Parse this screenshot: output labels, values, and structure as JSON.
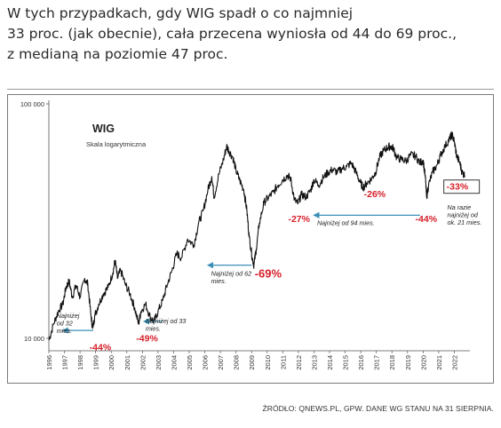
{
  "headline": {
    "line1": "W tych przypadkach, gdy WIG spadł o co najmniej",
    "line2": "33 proc. (jak obecnie), cała przecena wyniosła od 44 do 69 proc.,",
    "line3": "z medianą na poziomie 47 proc."
  },
  "source": "ŹRÓDŁO: QNEWS.PL, GPW. DANE WG STANU NA 31 SIERPNIA.",
  "colors": {
    "line": "#111111",
    "accent_red": "#d6202a",
    "arrow_blue": "#3a8fb5",
    "axis": "#555555"
  },
  "chart_data": {
    "type": "line",
    "title": "WIG",
    "subtitle": "Skala logarytmiczna",
    "xlabel": "",
    "ylabel": "",
    "y_scale": "log",
    "ylim": [
      9000,
      100000
    ],
    "y_ticks": [
      {
        "value": 100000,
        "label": "100 000"
      },
      {
        "value": 10000,
        "label": "10 000"
      }
    ],
    "xlim": [
      1996.0,
      2023.0
    ],
    "x_ticks": [
      "1996",
      "1997",
      "1998",
      "1999",
      "2000",
      "2001",
      "2002",
      "2003",
      "2004",
      "2005",
      "2006",
      "2007",
      "2008",
      "2009",
      "2010",
      "2011",
      "2012",
      "2013",
      "2014",
      "2015",
      "2016",
      "2017",
      "2018",
      "2019",
      "2020",
      "2021",
      "2022"
    ],
    "series": [
      {
        "values": [
          [
            1996.0,
            9800
          ],
          [
            1996.3,
            11500
          ],
          [
            1996.6,
            13000
          ],
          [
            1996.9,
            14000
          ],
          [
            1997.1,
            16500
          ],
          [
            1997.3,
            17500
          ],
          [
            1997.5,
            15000
          ],
          [
            1997.75,
            16800
          ],
          [
            1998.0,
            15000
          ],
          [
            1998.3,
            18000
          ],
          [
            1998.5,
            17000
          ],
          [
            1998.7,
            12500
          ],
          [
            1998.8,
            11000
          ],
          [
            1998.95,
            12500
          ],
          [
            1999.2,
            14000
          ],
          [
            1999.5,
            15500
          ],
          [
            1999.8,
            16500
          ],
          [
            2000.1,
            19000
          ],
          [
            2000.25,
            21500
          ],
          [
            2000.4,
            18000
          ],
          [
            2000.6,
            19500
          ],
          [
            2000.9,
            17000
          ],
          [
            2001.2,
            15500
          ],
          [
            2001.5,
            13500
          ],
          [
            2001.75,
            11500
          ],
          [
            2001.9,
            13000
          ],
          [
            2002.2,
            14000
          ],
          [
            2002.5,
            12300
          ],
          [
            2002.75,
            11800
          ],
          [
            2003.0,
            13000
          ],
          [
            2003.3,
            14500
          ],
          [
            2003.6,
            17000
          ],
          [
            2003.9,
            19500
          ],
          [
            2004.2,
            23000
          ],
          [
            2004.5,
            22000
          ],
          [
            2004.9,
            26500
          ],
          [
            2005.3,
            25000
          ],
          [
            2005.6,
            31000
          ],
          [
            2005.9,
            35000
          ],
          [
            2006.2,
            43000
          ],
          [
            2006.45,
            49000
          ],
          [
            2006.6,
            40000
          ],
          [
            2006.9,
            50000
          ],
          [
            2007.2,
            58000
          ],
          [
            2007.4,
            66000
          ],
          [
            2007.55,
            63000
          ],
          [
            2007.8,
            59000
          ],
          [
            2008.0,
            52000
          ],
          [
            2008.25,
            47000
          ],
          [
            2008.5,
            43000
          ],
          [
            2008.7,
            35000
          ],
          [
            2008.85,
            27000
          ],
          [
            2009.05,
            22000
          ],
          [
            2009.15,
            20500
          ],
          [
            2009.3,
            24000
          ],
          [
            2009.5,
            31000
          ],
          [
            2009.8,
            38000
          ],
          [
            2010.1,
            40000
          ],
          [
            2010.4,
            42000
          ],
          [
            2010.7,
            45000
          ],
          [
            2011.0,
            47500
          ],
          [
            2011.3,
            49500
          ],
          [
            2011.5,
            48000
          ],
          [
            2011.75,
            39000
          ],
          [
            2011.95,
            37500
          ],
          [
            2012.2,
            41000
          ],
          [
            2012.5,
            40000
          ],
          [
            2012.8,
            43000
          ],
          [
            2013.0,
            47500
          ],
          [
            2013.3,
            45000
          ],
          [
            2013.6,
            48500
          ],
          [
            2013.9,
            51000
          ],
          [
            2014.2,
            52500
          ],
          [
            2014.5,
            51000
          ],
          [
            2014.8,
            53000
          ],
          [
            2015.1,
            54000
          ],
          [
            2015.4,
            56000
          ],
          [
            2015.7,
            51000
          ],
          [
            2015.95,
            46500
          ],
          [
            2016.15,
            44000
          ],
          [
            2016.4,
            46000
          ],
          [
            2016.7,
            48000
          ],
          [
            2016.95,
            51000
          ],
          [
            2017.2,
            59000
          ],
          [
            2017.45,
            63000
          ],
          [
            2017.7,
            65000
          ],
          [
            2017.9,
            66000
          ],
          [
            2018.1,
            64500
          ],
          [
            2018.3,
            59000
          ],
          [
            2018.6,
            58000
          ],
          [
            2018.9,
            57000
          ],
          [
            2019.2,
            60500
          ],
          [
            2019.5,
            60000
          ],
          [
            2019.8,
            56000
          ],
          [
            2020.0,
            57500
          ],
          [
            2020.15,
            48000
          ],
          [
            2020.22,
            40000
          ],
          [
            2020.35,
            45000
          ],
          [
            2020.6,
            51000
          ],
          [
            2020.9,
            55000
          ],
          [
            2021.1,
            60000
          ],
          [
            2021.4,
            66000
          ],
          [
            2021.7,
            71000
          ],
          [
            2021.85,
            74000
          ],
          [
            2022.0,
            69000
          ],
          [
            2022.15,
            60000
          ],
          [
            2022.35,
            56000
          ],
          [
            2022.5,
            51000
          ],
          [
            2022.67,
            49500
          ]
        ]
      }
    ],
    "annotations": [
      {
        "label": "-44%",
        "kind": "decline",
        "x": 1998.6,
        "y": 8900
      },
      {
        "label": "-49%",
        "kind": "decline",
        "x": 2001.6,
        "y": 9700
      },
      {
        "label": "-69%",
        "kind": "decline",
        "x": 2009.2,
        "y": 18200
      },
      {
        "label": "-27%",
        "kind": "decline",
        "x": 2011.35,
        "y": 31300
      },
      {
        "label": "-26%",
        "kind": "decline",
        "x": 2016.2,
        "y": 40000
      },
      {
        "label": "-44%",
        "kind": "decline",
        "x": 2019.5,
        "y": 31300
      },
      {
        "label": "-33%",
        "kind": "current",
        "x": 2021.5,
        "y": 43000
      }
    ],
    "notes": [
      {
        "lines": [
          "Najniżej",
          "od 32",
          "mies."
        ],
        "x0": 1996.9,
        "x1": 1998.85,
        "y": 10800
      },
      {
        "lines": [
          "Najniżej od 33",
          "mies."
        ],
        "x0": 2002.1,
        "x1": 2003.3,
        "y": 11800
      },
      {
        "lines": [
          "Najniżej od 62",
          "mies."
        ],
        "x0": 2006.2,
        "x1": 2009.0,
        "y": 20500
      },
      {
        "lines": [
          "Najniżej od 94 mies."
        ],
        "x0": 2013.0,
        "x1": 2019.8,
        "y": 33500
      },
      {
        "lines": [
          "Na razie",
          "najniżej od",
          "ok. 21 mies."
        ],
        "x0": 2021.7,
        "x1": 2021.7,
        "y": 36000
      }
    ]
  }
}
